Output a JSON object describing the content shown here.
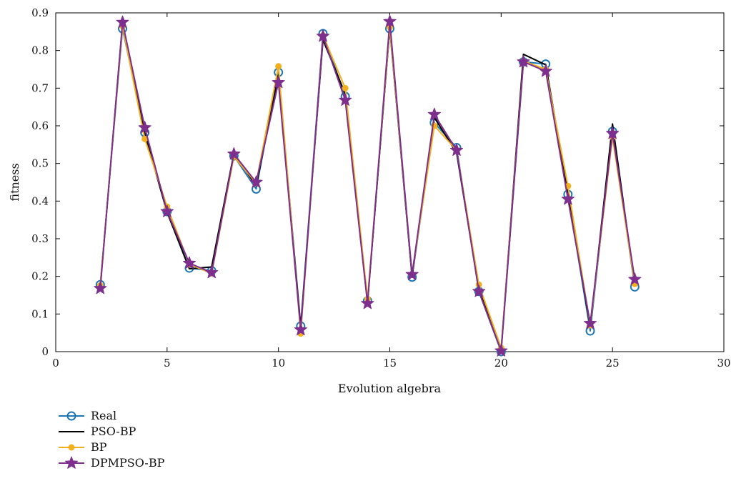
{
  "chart_data": {
    "type": "line",
    "xlabel": "Evolution algebra",
    "ylabel": "fitness",
    "xlim": [
      0,
      30
    ],
    "ylim": [
      0,
      0.9
    ],
    "xticks": [
      "0",
      "5",
      "10",
      "15",
      "20",
      "25",
      "30"
    ],
    "yticks": [
      "0",
      "0.1",
      "0.2",
      "0.3",
      "0.4",
      "0.5",
      "0.6",
      "0.7",
      "0.8",
      "0.9"
    ],
    "grid": false,
    "legend_position": "below-left",
    "x": [
      2,
      3,
      4,
      5,
      6,
      7,
      8,
      9,
      10,
      11,
      12,
      13,
      14,
      15,
      16,
      17,
      18,
      19,
      20,
      21,
      22,
      23,
      24,
      25,
      26
    ],
    "series": [
      {
        "name": "Real",
        "color": "#1f77b4",
        "marker": "open-circle",
        "values": [
          0.178,
          0.858,
          0.582,
          0.372,
          0.222,
          0.215,
          0.52,
          0.432,
          0.742,
          0.068,
          0.845,
          0.678,
          0.135,
          0.858,
          0.198,
          0.608,
          0.542,
          0.16,
          0.0,
          0.77,
          0.764,
          0.418,
          0.055,
          0.585,
          0.172
        ]
      },
      {
        "name": "PSO-BP",
        "color": "#000000",
        "marker": "none",
        "values": [
          0.172,
          0.872,
          0.578,
          0.37,
          0.22,
          0.225,
          0.527,
          0.44,
          0.735,
          0.065,
          0.828,
          0.685,
          0.13,
          0.86,
          0.2,
          0.622,
          0.528,
          0.165,
          0.005,
          0.79,
          0.762,
          0.42,
          0.065,
          0.605,
          0.178
        ]
      },
      {
        "name": "BP",
        "color": "#f2b01e",
        "marker": "filled-circle",
        "values": [
          0.176,
          0.865,
          0.565,
          0.385,
          0.232,
          0.208,
          0.518,
          0.448,
          0.758,
          0.048,
          0.84,
          0.7,
          0.14,
          0.862,
          0.205,
          0.6,
          0.535,
          0.178,
          0.01,
          0.772,
          0.75,
          0.44,
          0.07,
          0.57,
          0.18
        ]
      },
      {
        "name": "DPMPSO-BP",
        "color": "#7e2f8e",
        "marker": "star",
        "values": [
          0.168,
          0.875,
          0.595,
          0.372,
          0.235,
          0.21,
          0.525,
          0.45,
          0.715,
          0.058,
          0.838,
          0.668,
          0.128,
          0.877,
          0.205,
          0.63,
          0.535,
          0.16,
          0.002,
          0.77,
          0.745,
          0.405,
          0.075,
          0.58,
          0.192
        ]
      }
    ]
  }
}
